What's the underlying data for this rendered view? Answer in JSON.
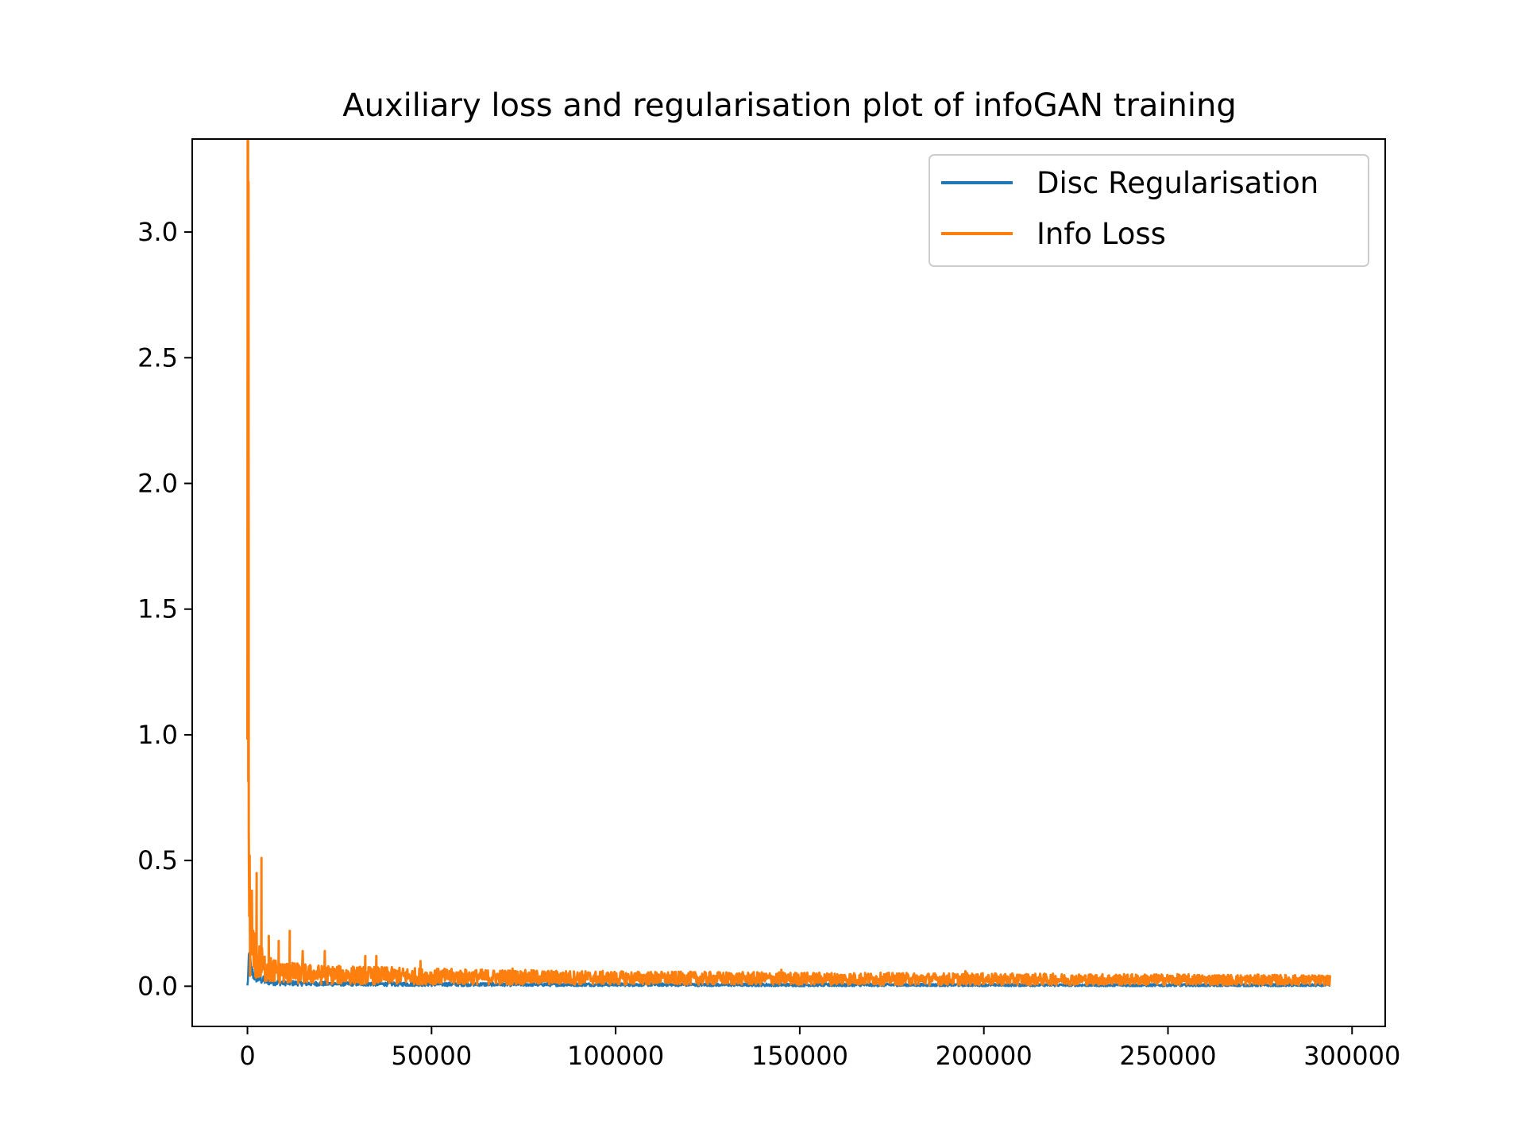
{
  "chart_data": {
    "type": "line",
    "title": "Auxiliary loss and regularisation plot of infoGAN training",
    "xlabel": "",
    "ylabel": "",
    "xlim": [
      -15000,
      309000
    ],
    "ylim": [
      -0.16,
      3.37
    ],
    "x_ticks": [
      0,
      50000,
      100000,
      150000,
      200000,
      250000,
      300000
    ],
    "y_ticks": [
      0.0,
      0.5,
      1.0,
      1.5,
      2.0,
      2.5,
      3.0
    ],
    "x_tick_labels": [
      "0",
      "50000",
      "100000",
      "150000",
      "200000",
      "250000",
      "300000"
    ],
    "y_tick_labels": [
      "0.0",
      "0.5",
      "1.0",
      "1.5",
      "2.0",
      "2.5",
      "3.0"
    ],
    "grid": false,
    "legend_position": "upper right",
    "series": [
      {
        "name": "Disc Regularisation",
        "color": "#1f77b4",
        "x": [
          0,
          500,
          1000,
          2000,
          3000,
          5000,
          8000,
          12000,
          20000,
          30000,
          50000,
          80000,
          120000,
          160000,
          200000,
          240000,
          280000,
          294000
        ],
        "y": [
          0.0,
          0.12,
          0.06,
          0.04,
          0.03,
          0.02,
          0.015,
          0.012,
          0.01,
          0.009,
          0.008,
          0.007,
          0.006,
          0.005,
          0.005,
          0.004,
          0.004,
          0.004
        ],
        "noise": [
          0.01,
          0.05,
          0.03,
          0.025,
          0.02,
          0.015,
          0.012,
          0.01,
          0.009,
          0.008,
          0.008,
          0.007,
          0.006,
          0.006,
          0.005,
          0.005,
          0.005,
          0.005
        ]
      },
      {
        "name": "Info Loss",
        "color": "#ff7f0e",
        "x": [
          0,
          100,
          200,
          400,
          700,
          1000,
          1500,
          2000,
          3000,
          3800,
          4500,
          6000,
          8000,
          10000,
          11500,
          15000,
          20000,
          30000,
          40000,
          48000,
          60000,
          80000,
          100000,
          120000,
          145000,
          170000,
          195000,
          220000,
          250000,
          280000,
          294000
        ],
        "y": [
          0.55,
          3.2,
          1.2,
          0.3,
          0.18,
          0.14,
          0.12,
          0.1,
          0.09,
          0.08,
          0.07,
          0.06,
          0.055,
          0.05,
          0.048,
          0.045,
          0.042,
          0.04,
          0.038,
          0.036,
          0.034,
          0.032,
          0.03,
          0.029,
          0.028,
          0.027,
          0.026,
          0.025,
          0.024,
          0.023,
          0.022
        ],
        "spikes": [
          [
            300,
            3.2
          ],
          [
            600,
            0.52
          ],
          [
            1200,
            0.38
          ],
          [
            2500,
            0.45
          ],
          [
            3800,
            0.51
          ],
          [
            5800,
            0.2
          ],
          [
            8500,
            0.18
          ],
          [
            11500,
            0.22
          ],
          [
            15000,
            0.14
          ],
          [
            21000,
            0.14
          ],
          [
            32000,
            0.12
          ],
          [
            35000,
            0.12
          ],
          [
            47000,
            0.1
          ],
          [
            72000,
            0.07
          ],
          [
            145000,
            0.065
          ],
          [
            195000,
            0.06
          ]
        ]
      }
    ]
  }
}
